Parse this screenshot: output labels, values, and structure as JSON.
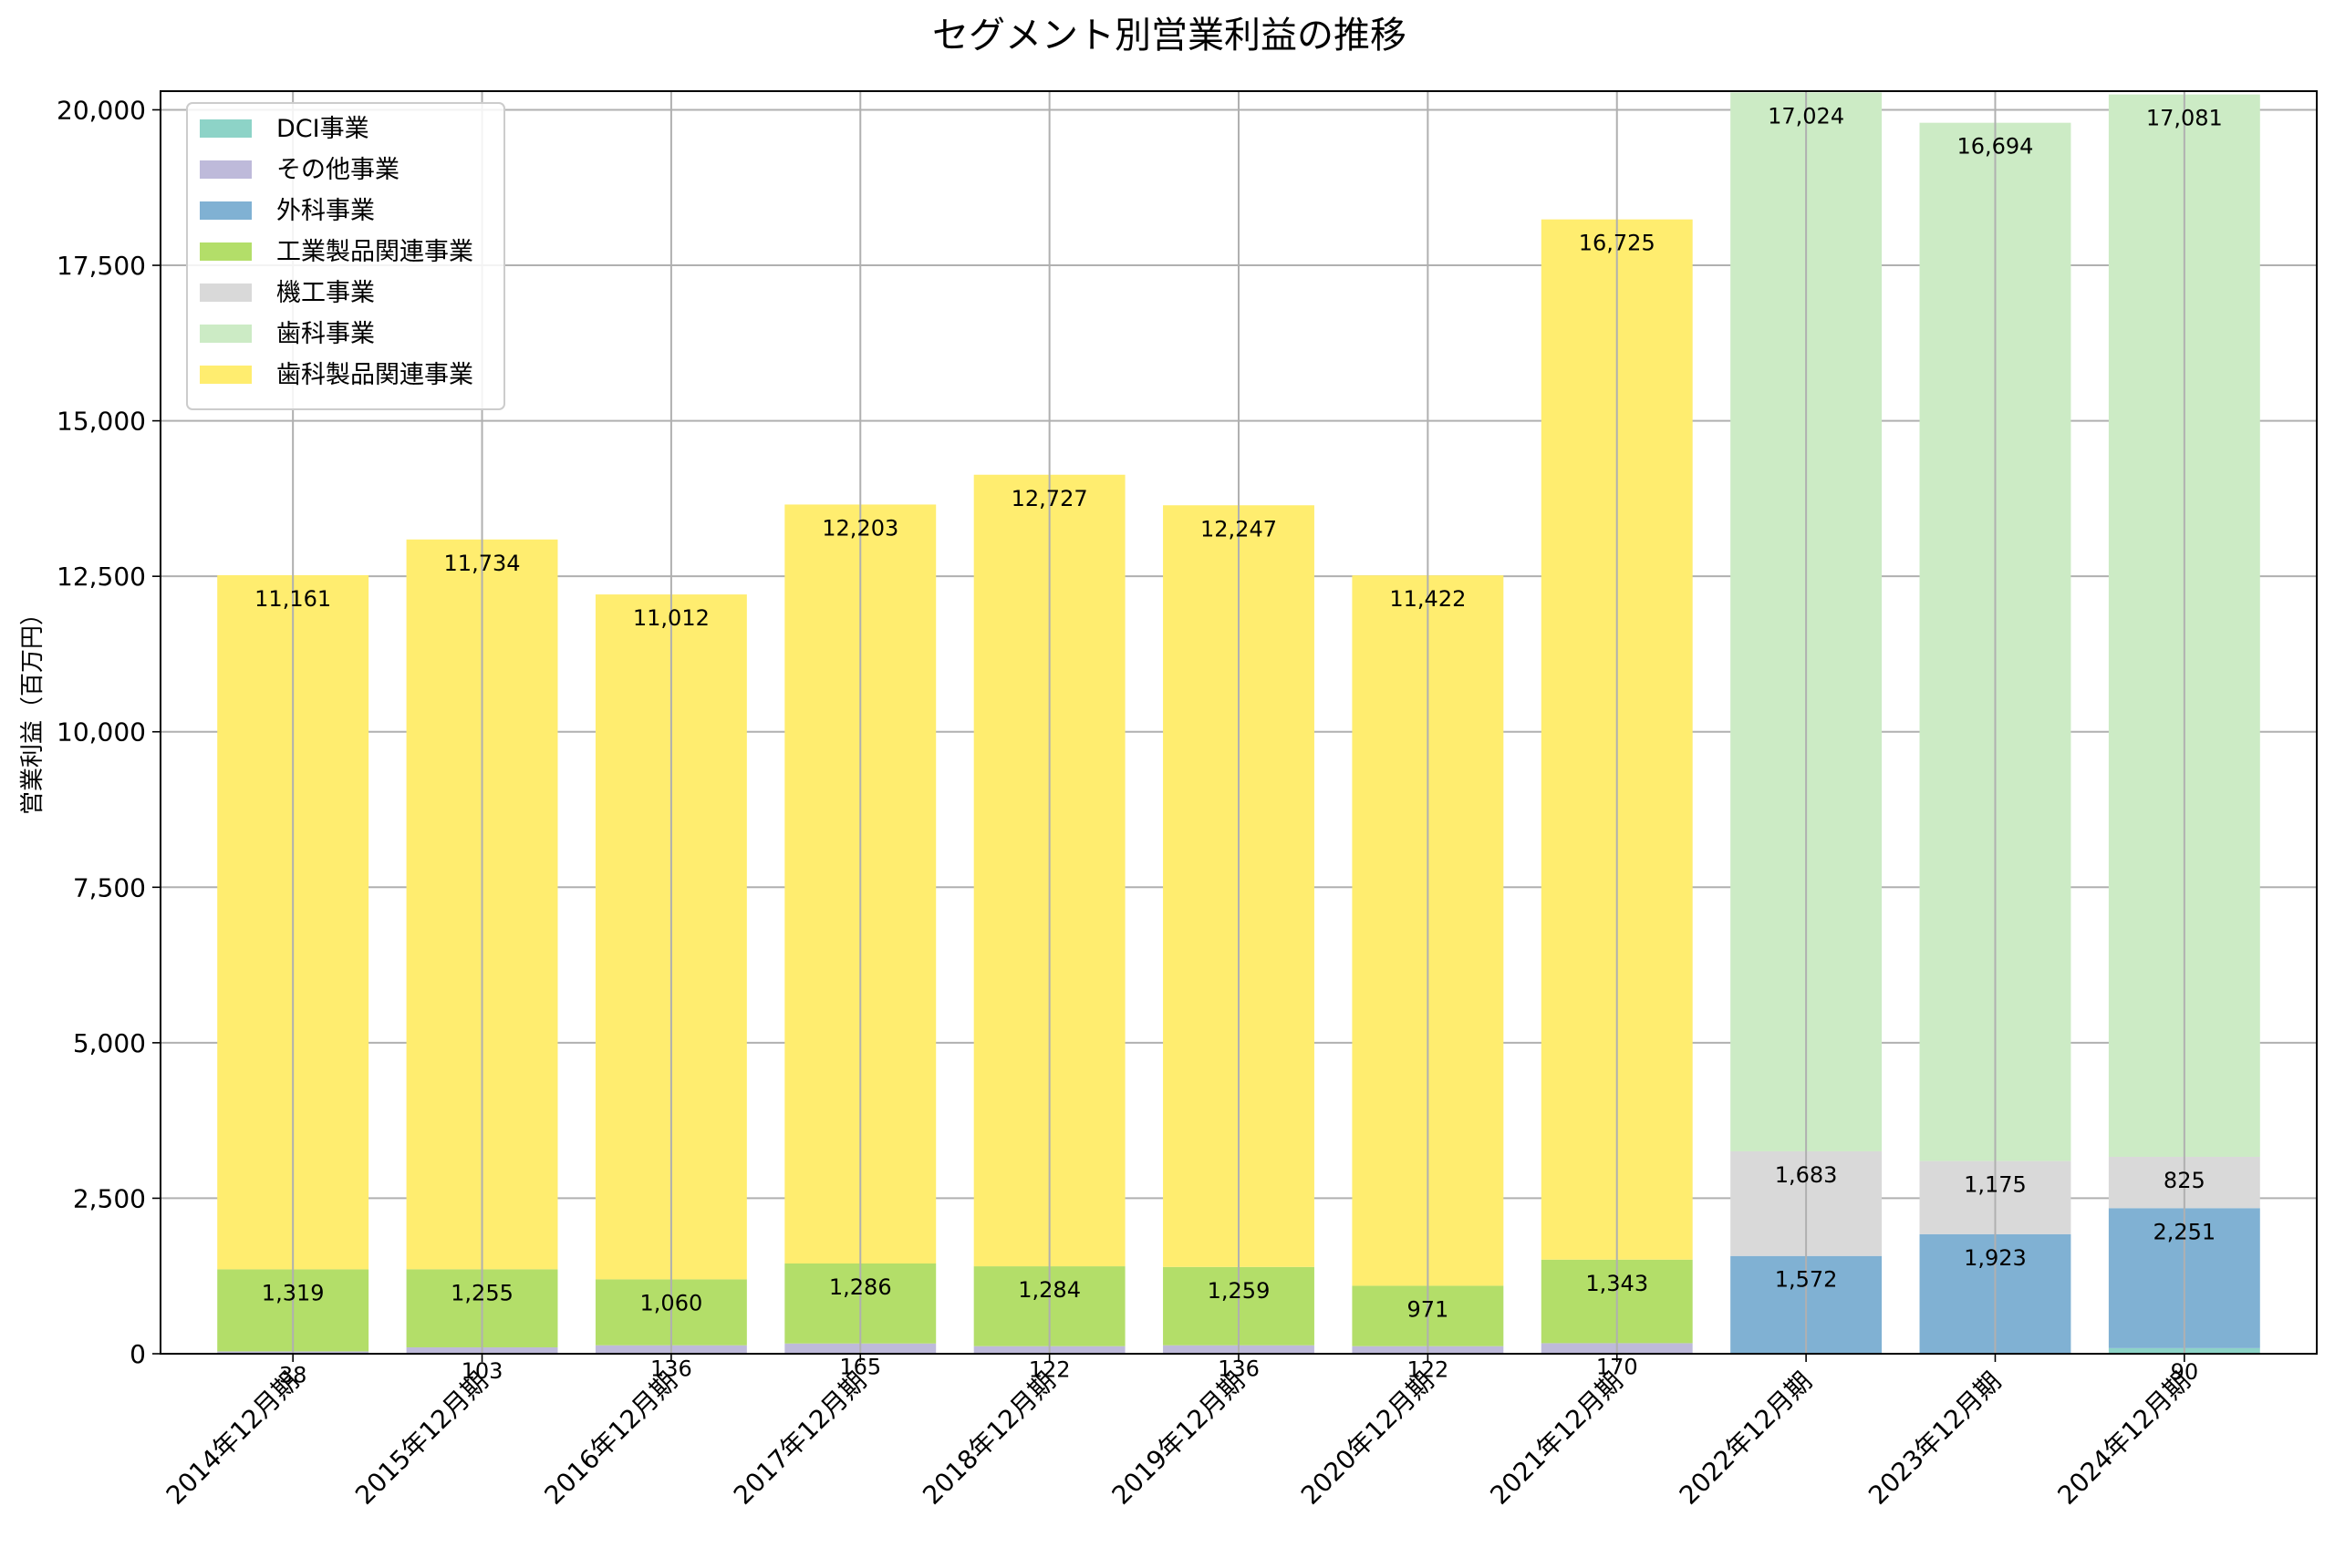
{
  "chart_data": {
    "type": "bar",
    "stacked": true,
    "title": "セグメント別営業利益の推移",
    "xlabel": "",
    "ylabel": "営業利益（百万円）",
    "ylim": [
      0,
      20300
    ],
    "yticks": [
      0,
      2500,
      5000,
      7500,
      10000,
      12500,
      15000,
      17500,
      20000
    ],
    "ytick_labels": [
      "0",
      "2,500",
      "5,000",
      "7,500",
      "10,000",
      "12,500",
      "15,000",
      "17,500",
      "20,000"
    ],
    "grid": true,
    "legend_position": "top-left",
    "categories": [
      "2014年12月期",
      "2015年12月期",
      "2016年12月期",
      "2017年12月期",
      "2018年12月期",
      "2019年12月期",
      "2020年12月期",
      "2021年12月期",
      "2022年12月期",
      "2023年12月期",
      "2024年12月期"
    ],
    "series": [
      {
        "name": "DCI事業",
        "color": "#8dd3c7",
        "values": [
          0,
          0,
          0,
          0,
          0,
          0,
          0,
          0,
          0,
          0,
          90
        ],
        "labels": [
          "",
          "",
          "",
          "",
          "",
          "",
          "",
          "",
          "",
          "",
          "90"
        ]
      },
      {
        "name": "その他事業",
        "color": "#bebada",
        "values": [
          38,
          103,
          136,
          165,
          122,
          136,
          122,
          170,
          0,
          0,
          0
        ],
        "labels": [
          "38",
          "103",
          "136",
          "165",
          "122",
          "136",
          "122",
          "170",
          "",
          "",
          ""
        ]
      },
      {
        "name": "外科事業",
        "color": "#80b1d3",
        "values": [
          0,
          0,
          0,
          0,
          0,
          0,
          0,
          0,
          1572,
          1923,
          2251
        ],
        "labels": [
          "",
          "",
          "",
          "",
          "",
          "",
          "",
          "",
          "1,572",
          "1,923",
          "2,251"
        ]
      },
      {
        "name": "工業製品関連事業",
        "color": "#b3de69",
        "values": [
          1319,
          1255,
          1060,
          1286,
          1284,
          1259,
          971,
          1343,
          0,
          0,
          0
        ],
        "labels": [
          "1,319",
          "1,255",
          "1,060",
          "1,286",
          "1,284",
          "1,259",
          "971",
          "1,343",
          "",
          "",
          ""
        ]
      },
      {
        "name": "機工事業",
        "color": "#d9d9d9",
        "values": [
          0,
          0,
          0,
          0,
          0,
          0,
          0,
          0,
          1683,
          1175,
          825
        ],
        "labels": [
          "",
          "",
          "",
          "",
          "",
          "",
          "",
          "",
          "1,683",
          "1,175",
          "825"
        ]
      },
      {
        "name": "歯科事業",
        "color": "#ccebc5",
        "values": [
          0,
          0,
          0,
          0,
          0,
          0,
          0,
          0,
          17024,
          16694,
          17081
        ],
        "labels": [
          "",
          "",
          "",
          "",
          "",
          "",
          "",
          "",
          "17,024",
          "16,694",
          "17,081"
        ]
      },
      {
        "name": "歯科製品関連事業",
        "color": "#ffed6f",
        "values": [
          11161,
          11734,
          11012,
          12203,
          12727,
          12247,
          11422,
          16725,
          0,
          0,
          0
        ],
        "labels": [
          "11,161",
          "11,734",
          "11,012",
          "12,203",
          "12,727",
          "12,247",
          "11,422",
          "16,725",
          "",
          "",
          ""
        ]
      }
    ]
  }
}
